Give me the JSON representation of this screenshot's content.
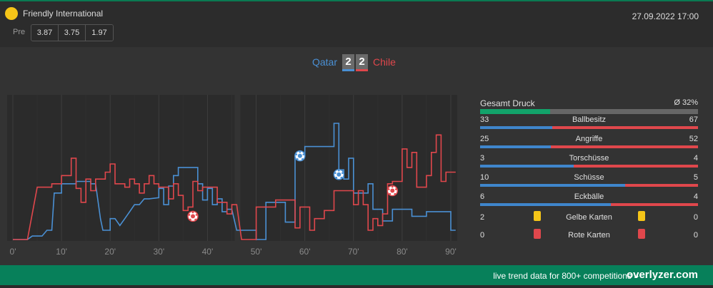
{
  "match": {
    "competition": "Friendly International",
    "datetime": "27.09.2022 17:00",
    "pre_label": "Pre",
    "odds": [
      "3.87",
      "3.75",
      "1.97"
    ],
    "home_team": "Qatar",
    "away_team": "Chile",
    "home_score": "2",
    "away_score": "2"
  },
  "colors": {
    "home": "#4a90d4",
    "away": "#e0474c",
    "accent": "#07805a",
    "competition_dot": "#f5c518"
  },
  "chart_data": {
    "type": "line",
    "x_ticks": [
      "0'",
      "10'",
      "20'",
      "30'",
      "40'",
      "50'",
      "60'",
      "70'",
      "80'",
      "90'"
    ],
    "xlim": [
      0,
      90
    ],
    "ylim": [
      0,
      100
    ],
    "grid": "vertical",
    "series": [
      {
        "color": "#4a90d4",
        "points": [
          [
            0,
            0
          ],
          [
            3,
            0
          ],
          [
            4,
            3
          ],
          [
            6,
            3
          ],
          [
            7,
            8
          ],
          [
            8,
            8
          ],
          [
            8.5,
            40
          ],
          [
            10,
            40
          ],
          [
            10,
            48
          ],
          [
            13,
            48
          ],
          [
            13,
            50
          ],
          [
            16,
            50
          ],
          [
            16,
            48
          ],
          [
            17,
            48
          ],
          [
            18,
            18
          ],
          [
            18.5,
            8
          ],
          [
            20,
            8
          ],
          [
            20,
            18
          ],
          [
            21,
            18
          ],
          [
            22,
            12
          ],
          [
            23,
            18
          ],
          [
            24,
            24
          ],
          [
            25,
            30
          ],
          [
            26,
            30
          ],
          [
            27,
            35
          ],
          [
            28,
            35
          ],
          [
            30,
            36
          ],
          [
            30,
            44
          ],
          [
            31,
            44
          ],
          [
            31,
            30
          ],
          [
            32,
            30
          ],
          [
            32,
            46
          ],
          [
            33,
            46
          ],
          [
            33,
            55
          ],
          [
            34,
            55
          ],
          [
            34,
            62
          ],
          [
            38,
            62
          ],
          [
            38,
            48
          ],
          [
            39,
            48
          ],
          [
            39,
            34
          ],
          [
            40,
            34
          ],
          [
            40,
            44
          ],
          [
            41,
            44
          ],
          [
            41,
            30
          ],
          [
            42,
            30
          ],
          [
            42,
            35
          ],
          [
            43,
            35
          ],
          [
            43,
            24
          ],
          [
            44,
            24
          ],
          [
            44,
            26
          ],
          [
            45,
            26
          ],
          [
            46,
            8
          ],
          [
            50,
            8
          ],
          [
            50,
            0
          ],
          [
            52,
            0
          ],
          [
            52,
            32
          ],
          [
            56,
            32
          ],
          [
            56,
            15
          ],
          [
            58,
            15
          ],
          [
            58,
            72
          ],
          [
            60,
            72
          ],
          [
            60,
            80
          ],
          [
            66,
            80
          ],
          [
            66,
            100
          ],
          [
            67,
            100
          ],
          [
            67,
            60
          ],
          [
            68,
            60
          ],
          [
            68,
            52
          ],
          [
            69,
            52
          ],
          [
            69,
            70
          ],
          [
            70,
            70
          ],
          [
            70,
            40
          ],
          [
            73,
            40
          ],
          [
            73,
            48
          ],
          [
            74,
            48
          ],
          [
            74,
            26
          ],
          [
            76,
            26
          ],
          [
            76,
            16
          ],
          [
            78,
            16
          ],
          [
            78,
            26
          ],
          [
            82,
            26
          ],
          [
            82,
            20
          ],
          [
            85,
            20
          ],
          [
            85,
            24
          ],
          [
            90,
            24
          ],
          [
            90,
            8
          ],
          [
            91,
            8
          ]
        ]
      },
      {
        "color": "#e0474c",
        "points": [
          [
            0,
            0
          ],
          [
            3,
            0
          ],
          [
            5,
            45
          ],
          [
            8,
            45
          ],
          [
            8,
            48
          ],
          [
            10,
            48
          ],
          [
            10,
            55
          ],
          [
            12,
            55
          ],
          [
            12,
            70
          ],
          [
            13,
            70
          ],
          [
            13,
            44
          ],
          [
            14,
            44
          ],
          [
            14,
            32
          ],
          [
            15,
            32
          ],
          [
            15,
            52
          ],
          [
            16,
            52
          ],
          [
            16,
            42
          ],
          [
            17,
            42
          ],
          [
            17,
            52
          ],
          [
            18,
            52
          ],
          [
            19,
            52
          ],
          [
            19,
            58
          ],
          [
            20,
            58
          ],
          [
            20,
            65
          ],
          [
            21,
            65
          ],
          [
            21,
            48
          ],
          [
            23,
            48
          ],
          [
            23,
            45
          ],
          [
            24,
            45
          ],
          [
            24,
            52
          ],
          [
            25,
            52
          ],
          [
            25,
            48
          ],
          [
            26,
            48
          ],
          [
            26,
            40
          ],
          [
            27,
            40
          ],
          [
            27,
            48
          ],
          [
            28,
            48
          ],
          [
            28,
            55
          ],
          [
            29,
            55
          ],
          [
            29,
            48
          ],
          [
            30,
            48
          ],
          [
            30,
            45
          ],
          [
            32,
            45
          ],
          [
            32,
            35
          ],
          [
            33,
            35
          ],
          [
            33,
            48
          ],
          [
            34,
            48
          ],
          [
            34,
            38
          ],
          [
            35,
            38
          ],
          [
            35,
            25
          ],
          [
            36,
            25
          ],
          [
            36,
            28
          ],
          [
            37,
            28
          ],
          [
            37,
            50
          ],
          [
            38,
            50
          ],
          [
            38,
            42
          ],
          [
            39,
            42
          ],
          [
            39,
            45
          ],
          [
            42,
            45
          ],
          [
            42,
            32
          ],
          [
            44,
            32
          ],
          [
            44,
            22
          ],
          [
            45,
            22
          ],
          [
            45,
            30
          ],
          [
            46,
            30
          ],
          [
            47,
            0
          ],
          [
            50,
            0
          ],
          [
            50,
            28
          ],
          [
            54,
            28
          ],
          [
            54,
            34
          ],
          [
            58,
            34
          ],
          [
            58,
            10
          ],
          [
            59,
            10
          ],
          [
            59,
            28
          ],
          [
            61,
            28
          ],
          [
            61,
            8
          ],
          [
            62,
            8
          ],
          [
            62,
            18
          ],
          [
            64,
            18
          ],
          [
            64,
            25
          ],
          [
            66,
            25
          ],
          [
            66,
            42
          ],
          [
            70,
            42
          ],
          [
            70,
            30
          ],
          [
            71,
            30
          ],
          [
            71,
            42
          ],
          [
            72,
            42
          ],
          [
            72,
            30
          ],
          [
            73,
            30
          ],
          [
            73,
            8
          ],
          [
            74,
            8
          ],
          [
            74,
            18
          ],
          [
            75,
            18
          ],
          [
            75,
            12
          ],
          [
            76,
            12
          ],
          [
            76,
            22
          ],
          [
            77,
            22
          ],
          [
            77,
            48
          ],
          [
            78,
            48
          ],
          [
            78,
            50
          ],
          [
            80,
            50
          ],
          [
            80,
            78
          ],
          [
            81,
            78
          ],
          [
            81,
            62
          ],
          [
            82,
            62
          ],
          [
            82,
            75
          ],
          [
            83,
            75
          ],
          [
            83,
            45
          ],
          [
            85,
            45
          ],
          [
            85,
            55
          ],
          [
            86,
            55
          ],
          [
            86,
            75
          ],
          [
            87,
            75
          ],
          [
            87,
            90
          ],
          [
            88,
            90
          ],
          [
            88,
            50
          ],
          [
            89,
            50
          ],
          [
            89,
            58
          ],
          [
            91,
            58
          ]
        ]
      }
    ],
    "goals": [
      {
        "minute": 37,
        "level": 20,
        "team": "away"
      },
      {
        "minute": 59,
        "level": 72,
        "team": "home"
      },
      {
        "minute": 67,
        "level": 56,
        "team": "home"
      },
      {
        "minute": 78,
        "level": 42,
        "team": "away"
      }
    ]
  },
  "stats": {
    "pressure": {
      "label": "Gesamt Druck",
      "value": "Ø 32%",
      "fraction": 0.32
    },
    "rows": [
      {
        "label": "Ballbesitz",
        "home": "33",
        "away": "67"
      },
      {
        "label": "Angriffe",
        "home": "25",
        "away": "52"
      },
      {
        "label": "Torschüsse",
        "home": "3",
        "away": "4"
      },
      {
        "label": "Schüsse",
        "home": "10",
        "away": "5"
      },
      {
        "label": "Eckbälle",
        "home": "6",
        "away": "4"
      }
    ],
    "yellow": {
      "label": "Gelbe Karten",
      "home": "2",
      "away": "0",
      "color": "#f5c518"
    },
    "red": {
      "label": "Rote Karten",
      "home": "0",
      "away": "0",
      "color": "#e0474c"
    }
  },
  "footer": {
    "text": "live trend data for 800+ competitions »",
    "brand": "overlyzer.com"
  }
}
